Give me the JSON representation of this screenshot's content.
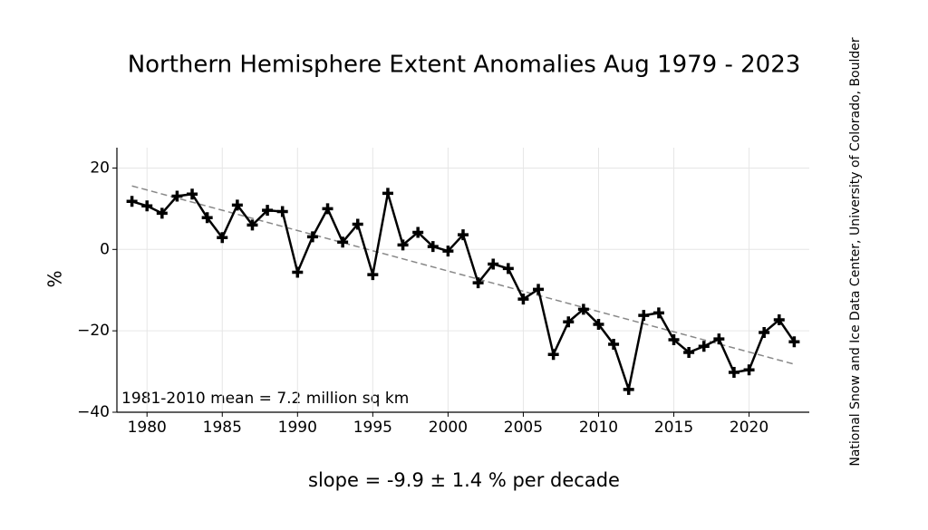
{
  "chart_data": {
    "type": "line",
    "title": "Northern Hemisphere Extent Anomalies Aug 1979 - 2023",
    "y_label": "%",
    "annotation": "1981-2010 mean = 7.2 million sq km",
    "slope_text": "slope = -9.9 ± 1.4 % per decade",
    "source": "National Snow and Ice Data Center, University of Colorado, Boulder",
    "x": [
      1979,
      1980,
      1981,
      1982,
      1983,
      1984,
      1985,
      1986,
      1987,
      1988,
      1989,
      1990,
      1991,
      1992,
      1993,
      1994,
      1995,
      1996,
      1997,
      1998,
      1999,
      2000,
      2001,
      2002,
      2003,
      2004,
      2005,
      2006,
      2007,
      2008,
      2009,
      2010,
      2011,
      2012,
      2013,
      2014,
      2015,
      2016,
      2017,
      2018,
      2019,
      2020,
      2021,
      2022,
      2023
    ],
    "series": [
      {
        "color": "#000000",
        "values": [
          11.8,
          10.7,
          8.9,
          13.1,
          13.6,
          7.8,
          2.9,
          10.9,
          6.0,
          9.6,
          9.3,
          -5.6,
          3.1,
          10.0,
          1.8,
          6.2,
          -6.2,
          13.8,
          1.1,
          4.2,
          0.7,
          -0.4,
          3.6,
          -8.2,
          -3.6,
          -4.7,
          -12.2,
          -9.8,
          -25.8,
          -17.8,
          -14.7,
          -18.4,
          -23.3,
          -34.4,
          -16.2,
          -15.6,
          -22.2,
          -25.3,
          -23.8,
          -22.0,
          -30.2,
          -29.6,
          -20.4,
          -17.3,
          -22.7
        ]
      }
    ],
    "trend_line": {
      "x": [
        1979,
        2023
      ],
      "values": [
        15.6,
        -28.2
      ],
      "color": "#888888"
    },
    "xlim": [
      1978,
      2024
    ],
    "ylim": [
      -40,
      25
    ],
    "xticks": [
      1980,
      1985,
      1990,
      1995,
      2000,
      2005,
      2010,
      2015,
      2020
    ],
    "yticks": [
      {
        "value": -40,
        "label": "−40"
      },
      {
        "value": -20,
        "label": "−20"
      },
      0,
      20
    ],
    "grid": true
  }
}
